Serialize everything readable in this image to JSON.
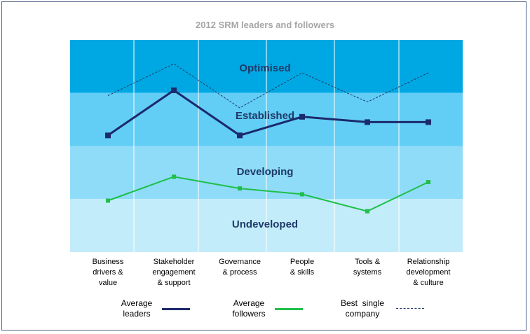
{
  "chart_data": {
    "type": "line",
    "title": "2012 SRM leaders and followers",
    "categories": [
      [
        "Business",
        "drivers &",
        "value"
      ],
      [
        "Stakeholder",
        "engagement",
        "& support"
      ],
      [
        "Governance",
        "& process"
      ],
      [
        "People",
        "& skills"
      ],
      [
        "Tools &",
        "systems"
      ],
      [
        "Relationship",
        "development",
        "& culture"
      ]
    ],
    "bands": [
      {
        "label": "Optimised",
        "color": "#00a8e3"
      },
      {
        "label": "Established",
        "color": "#62cdf5"
      },
      {
        "label": "Developing",
        "color": "#8fdcf8"
      },
      {
        "label": "Undeveloped",
        "color": "#c3ecfb"
      }
    ],
    "ylim": [
      0,
      4
    ],
    "series": [
      {
        "name": "Average leaders",
        "color": "#1b2a6b",
        "style": "solid",
        "values": [
          2.2,
          3.05,
          2.2,
          2.55,
          2.45,
          2.45
        ]
      },
      {
        "name": "Average followers",
        "color": "#1fbf4a",
        "style": "solid",
        "values": [
          0.97,
          1.42,
          1.2,
          1.09,
          0.77,
          1.32
        ]
      },
      {
        "name": "Best single company",
        "color": "#1f3a68",
        "style": "dashed",
        "values": [
          2.95,
          3.55,
          2.72,
          3.38,
          2.83,
          3.38
        ]
      }
    ],
    "legend": [
      {
        "label_lines": [
          "Average",
          "leaders"
        ],
        "color": "#1b2a6b",
        "style": "solid"
      },
      {
        "label_lines": [
          "Average",
          "followers"
        ],
        "color": "#1fbf4a",
        "style": "solid"
      },
      {
        "label_lines": [
          "Best  single",
          "company"
        ],
        "color": "#1f3a68",
        "style": "dashed"
      }
    ]
  }
}
